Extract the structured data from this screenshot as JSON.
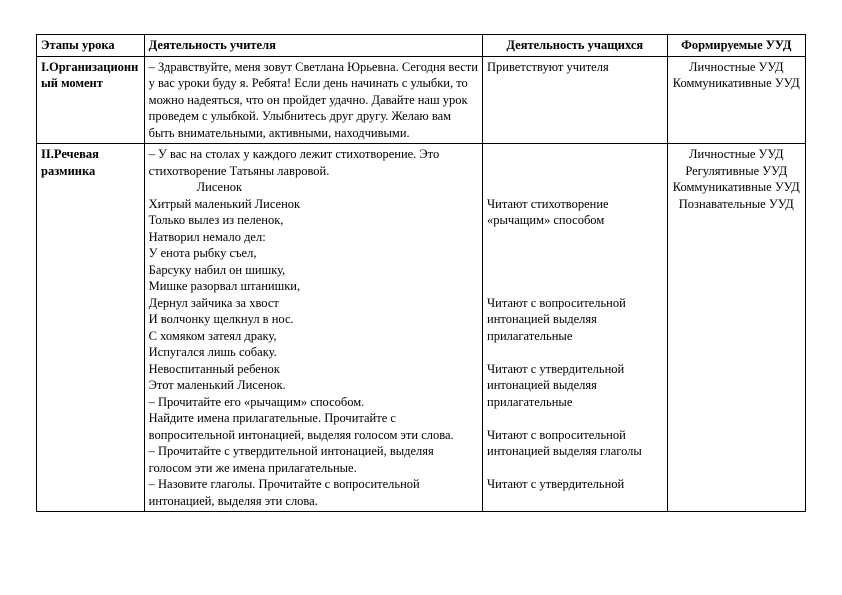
{
  "headers": {
    "stage": "Этапы урока",
    "teacher": "Деятельность учителя",
    "students": "Деятельность учащихся",
    "uud": "Формируемые УУД"
  },
  "rows": [
    {
      "stage": "I.Организационный момент",
      "teacher": "– Здравствуйте, меня зовут Светлана Юрьевна. Сегодня вести у вас уроки буду я. Ребята! Если день начинать с улыбки, то можно надеяться, что он пройдет удачно. Давайте наш урок проведем с улыбкой. Улыбнитесь друг другу. Желаю вам быть внимательными, активными, находчивыми.",
      "students": "Приветствуют учителя",
      "uud": "Личностные УУД Коммуникативные УУД"
    },
    {
      "stage": "II.Речевая разминка",
      "teacher_intro": "– У вас на столах у каждого лежит стихотворение. Это стихотворение Татьяны лавровой.",
      "poem_title": "Лисенок",
      "poem_lines": [
        "Хитрый маленький Лисенок",
        "Только вылез из пеленок,",
        "Натворил немало дел:",
        "У енота рыбку съел,",
        "Барсуку набил он шишку,",
        "Мишке разорвал штанишки,",
        "Дернул зайчика за хвост",
        "И волчонку щелкнул в нос.",
        "С хомяком затеял драку,",
        "Испугался лишь собаку.",
        "Невоспитанный ребенок",
        "Этот маленький Лисенок."
      ],
      "teacher_after": [
        "– Прочитайте его «рычащим» способом.",
        "Найдите имена прилагательные. Прочитайте с вопросительной интонацией, выделяя голосом эти слова.",
        "– Прочитайте с утвердительной интонацией, выделяя голосом эти же имена прилагательные.",
        "– Назовите глаголы. Прочитайте с вопросительной интонацией, выделяя эти слова."
      ],
      "students_blocks": [
        "Читают стихотворение «рычащим» способом",
        "Читают с вопросительной интонацией выделяя прилагательные",
        "Читают с утвердительной интонацией выделяя прилагательные",
        "Читают с вопросительной интонацией выделяя глаголы",
        "Читают с утвердительной"
      ],
      "uud": "Личностные УУД Регулятивные УУД Коммуникативные УУД Познавательные УУД"
    }
  ]
}
